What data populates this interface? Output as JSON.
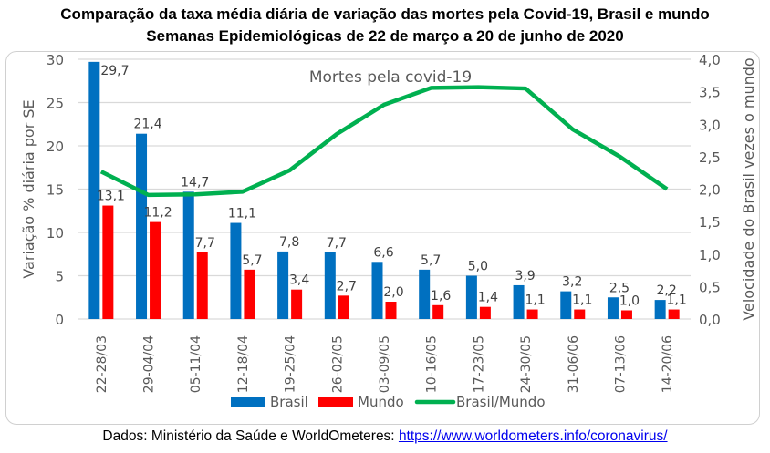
{
  "chart_data": {
    "type": "bar",
    "title": "Comparação da taxa média diária de variação das mortes pela Covid-19, Brasil e mundo",
    "subtitle": "Semanas Epidemiológicas de 22 de março a 20 de junho de 2020",
    "annotation": "Mortes pela covid-19",
    "categories": [
      "22-28/03",
      "29-04/04",
      "05-11/04",
      "12-18/04",
      "19-25/04",
      "26-02/05",
      "03-09/05",
      "10-16/05",
      "17-23/05",
      "24-30/05",
      "31-06/06",
      "07-13/06",
      "14-20/06"
    ],
    "series": [
      {
        "name": "Brasil",
        "type": "bar",
        "axis": "left",
        "color": "#0070c0",
        "values": [
          29.7,
          21.4,
          14.7,
          11.1,
          7.8,
          7.7,
          6.6,
          5.7,
          5.0,
          3.9,
          3.2,
          2.5,
          2.2
        ],
        "labels": [
          "29,7",
          "21,4",
          "14,7",
          "11,1",
          "7,8",
          "7,7",
          "6,6",
          "5,7",
          "5,0",
          "3,9",
          "3,2",
          "2,5",
          "2,2"
        ]
      },
      {
        "name": "Mundo",
        "type": "bar",
        "axis": "left",
        "color": "#ff0000",
        "values": [
          13.1,
          11.2,
          7.7,
          5.7,
          3.4,
          2.7,
          2.0,
          1.6,
          1.4,
          1.1,
          1.1,
          1.0,
          1.1
        ],
        "labels": [
          "13,1",
          "11,2",
          "7,7",
          "5,7",
          "3,4",
          "2,7",
          "2,0",
          "1,6",
          "1,4",
          "1,1",
          "1,1",
          "1,0",
          "1,1"
        ]
      },
      {
        "name": "Brasil/Mundo",
        "type": "line",
        "axis": "right",
        "color": "#00b050",
        "values": [
          2.27,
          1.91,
          1.92,
          1.96,
          2.29,
          2.85,
          3.3,
          3.56,
          3.57,
          3.55,
          2.92,
          2.5,
          2.0
        ]
      }
    ],
    "ylabel": "Variação % diária por SE",
    "ylim": [
      0,
      30
    ],
    "yticks": [
      "0",
      "5",
      "10",
      "15",
      "20",
      "25",
      "30"
    ],
    "y2label": "Velocidade do Brasil vezes o mundo",
    "y2lim": [
      0,
      4
    ],
    "y2ticks": [
      "0,0",
      "0,5",
      "1,0",
      "1,5",
      "2,0",
      "2,5",
      "3,0",
      "3,5",
      "4,0"
    ],
    "grid": true,
    "legend_position": "bottom"
  },
  "source": {
    "text": "Dados: Ministério da Saúde e WorldOmeteres: ",
    "link": "https://www.worldometers.info/coronavirus/"
  }
}
